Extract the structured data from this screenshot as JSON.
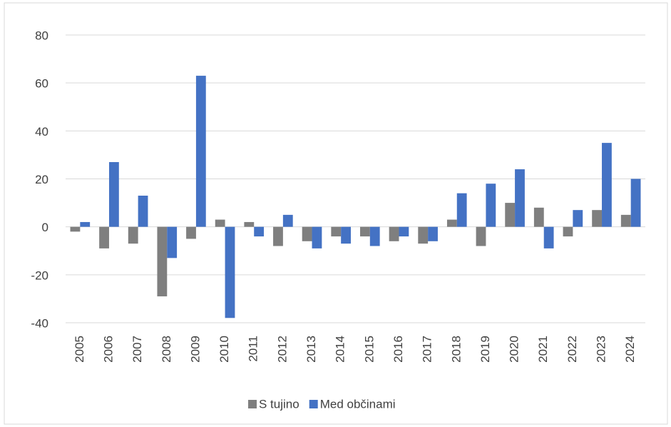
{
  "chart_data": {
    "type": "bar",
    "categories": [
      "2005",
      "2006",
      "2007",
      "2008",
      "2009",
      "2010",
      "2011",
      "2012",
      "2013",
      "2014",
      "2015",
      "2016",
      "2017",
      "2018",
      "2019",
      "2020",
      "2021",
      "2022",
      "2023",
      "2024"
    ],
    "series": [
      {
        "name": "S tujino",
        "color": "#7f7f7f",
        "values": [
          -2,
          -9,
          -7,
          -29,
          -5,
          3,
          2,
          -8,
          -6,
          -4,
          -4,
          -6,
          -7,
          3,
          -8,
          10,
          8,
          -4,
          7,
          5
        ]
      },
      {
        "name": "Med občinami",
        "color": "#4472c4",
        "values": [
          2,
          27,
          13,
          -13,
          63,
          -38,
          -4,
          5,
          -9,
          -7,
          -8,
          -4,
          -6,
          14,
          18,
          24,
          -9,
          7,
          35,
          20
        ]
      }
    ],
    "ylim": [
      -40,
      80
    ],
    "yticks": [
      -40,
      -20,
      0,
      20,
      40,
      60,
      80
    ],
    "grid": true,
    "legend": "bottom"
  }
}
